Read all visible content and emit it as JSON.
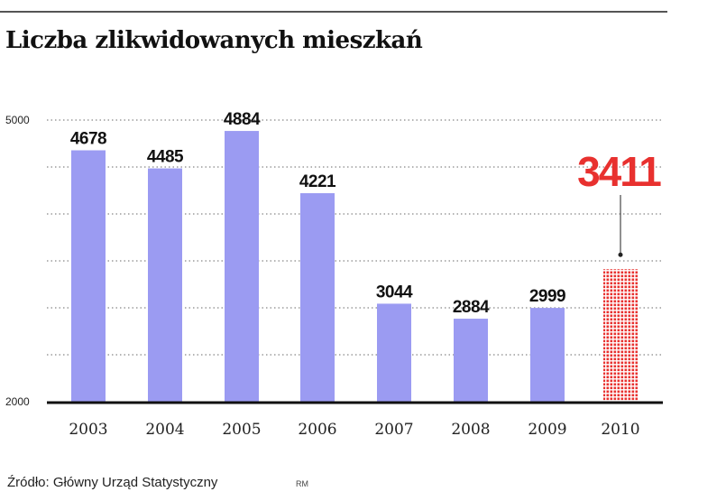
{
  "title": "Liczba zlikwidowanych mieszkań",
  "source": "Źródło: Główny Urząd Statystyczny",
  "credit": "RM",
  "colors": {
    "bar": "#9b9bf2",
    "highlight": "#e8312f",
    "baseline": "#111111",
    "grid": "#888888"
  },
  "chart_data": {
    "type": "bar",
    "categories": [
      "2003",
      "2004",
      "2005",
      "2006",
      "2007",
      "2008",
      "2009",
      "2010"
    ],
    "values": [
      4678,
      4485,
      4884,
      4221,
      3044,
      2884,
      2999,
      3411
    ],
    "data_labels": [
      "4678",
      "4485",
      "4884",
      "4221",
      "3044",
      "2884",
      "2999",
      "3411"
    ],
    "highlight_index": 7,
    "ylim": [
      2000,
      5000
    ],
    "y_tick_labels": [
      "2000",
      "5000"
    ],
    "grid": true
  }
}
